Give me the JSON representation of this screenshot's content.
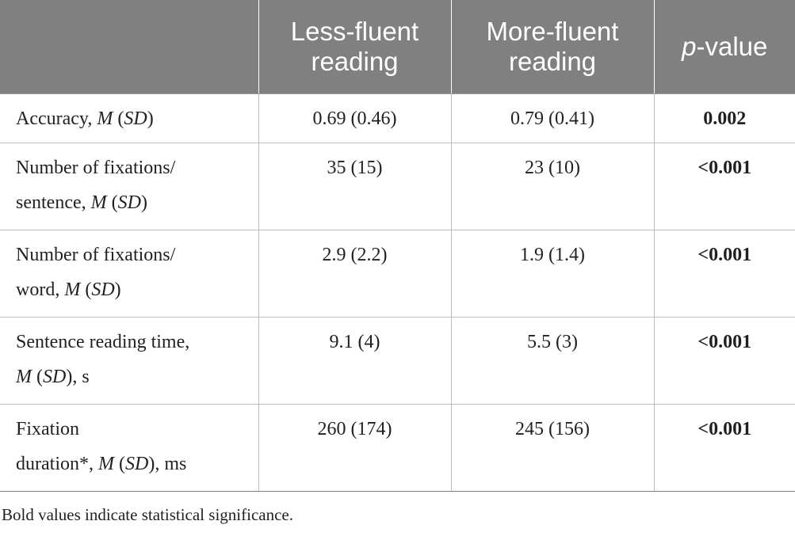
{
  "header": {
    "col0": "",
    "col1_line1": "Less-fluent",
    "col1_line2": "reading",
    "col2_line1": "More-fluent",
    "col2_line2": "reading",
    "col3_italic": "p",
    "col3_rest": "-value"
  },
  "rows": [
    {
      "label_parts": [
        "Accuracy, ",
        "M",
        " (",
        "SD",
        ")"
      ],
      "less_fluent": "0.69 (0.46)",
      "more_fluent": "0.79 (0.41)",
      "p_value": "0.002"
    },
    {
      "label_line1": "Number of fixations/",
      "label_line2_parts": [
        "sentence, ",
        "M",
        " (",
        "SD",
        ")"
      ],
      "less_fluent": "35 (15)",
      "more_fluent": "23 (10)",
      "p_value": "<0.001"
    },
    {
      "label_line1": "Number of fixations/",
      "label_line2_parts": [
        "word, ",
        "M",
        " (",
        "SD",
        ")"
      ],
      "less_fluent": "2.9 (2.2)",
      "more_fluent": "1.9 (1.4)",
      "p_value": "<0.001"
    },
    {
      "label_line1": "Sentence reading time,",
      "label_line2_parts": [
        "M",
        " (",
        "SD",
        "), s"
      ],
      "less_fluent": "9.1 (4)",
      "more_fluent": "5.5 (3)",
      "p_value": "<0.001"
    },
    {
      "label_line1": "Fixation",
      "label_line2_parts": [
        "duration*, ",
        "M",
        " (",
        "SD",
        "), ms"
      ],
      "less_fluent": "260 (174)",
      "more_fluent": "245 (156)",
      "p_value": "<0.001"
    }
  ],
  "footnote": "Bold values indicate statistical significance."
}
